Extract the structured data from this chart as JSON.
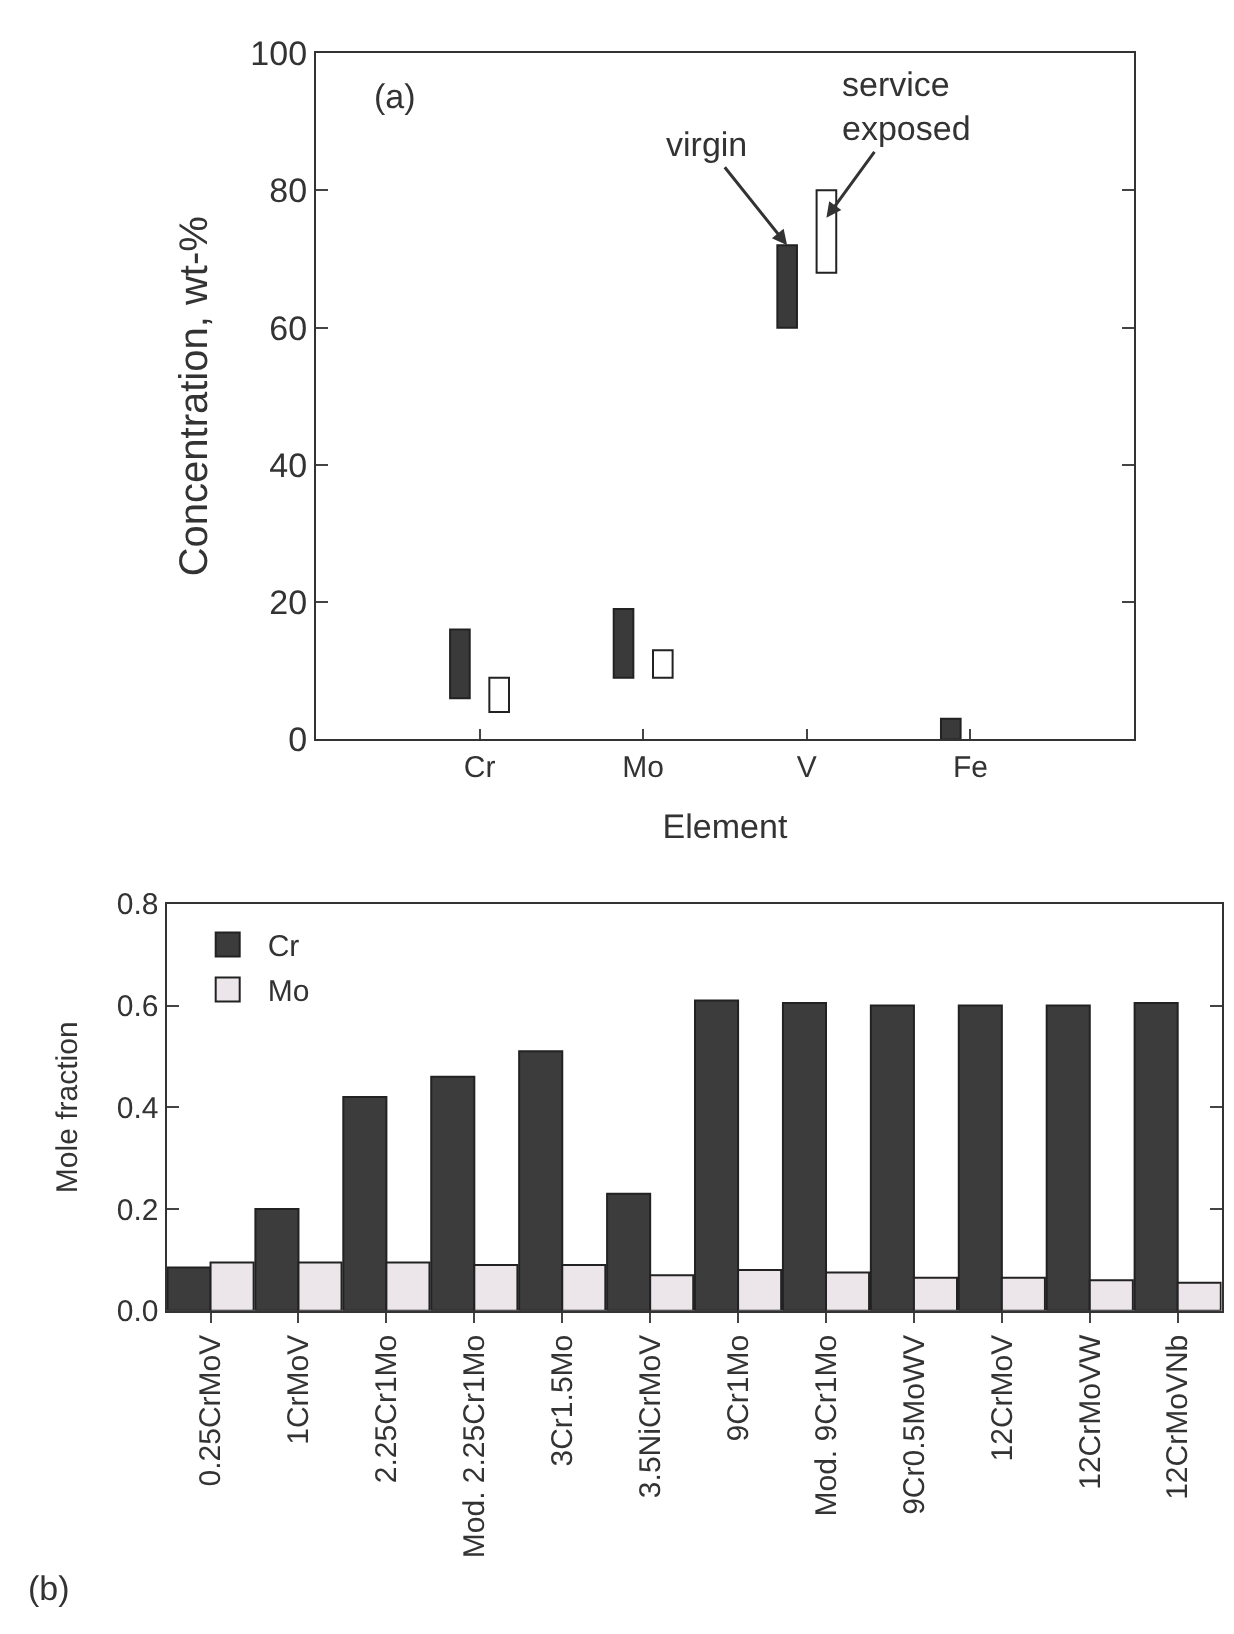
{
  "chart_data": [
    {
      "type": "bar",
      "xlabel": "Element",
      "ylabel": "Concentration, wt-%",
      "categories": [
        "Cr",
        "Mo",
        "V",
        "Fe"
      ],
      "series": [
        {
          "color": "#3a3a3a",
          "values": [
            10,
            10,
            12,
            3
          ],
          "base": [
            6,
            9,
            60,
            0
          ]
        },
        {
          "color": "#ffffff",
          "values": [
            5,
            4,
            12,
            null
          ],
          "base": [
            4,
            9,
            68,
            null
          ]
        }
      ],
      "ylim": [
        0,
        100
      ],
      "yticks": [
        0,
        20,
        40,
        60,
        80,
        100
      ],
      "grid": false,
      "legend": false,
      "annotations": [
        "(a)",
        {
          "text": "virgin",
          "x": "V",
          "y": 72
        },
        {
          "text": "service exposed",
          "x": "V",
          "y": 76
        }
      ]
    },
    {
      "type": "bar",
      "ylabel": "Mole fraction",
      "categories": [
        "0.25CrMoV",
        "1CrMoV",
        "2.25Cr1Mo",
        "Mod. 2.25Cr1Mo",
        "3Cr1.5Mo",
        "3.5NiCrMoV",
        "9Cr1Mo",
        "Mod. 9Cr1Mo",
        "9Cr0.5MoWV",
        "12CrMoV",
        "12CrMoVW",
        "12CrMoVNb"
      ],
      "series": [
        {
          "name": "Cr",
          "color": "#3c3c3c",
          "values": [
            0.085,
            0.2,
            0.42,
            0.46,
            0.51,
            0.23,
            0.61,
            0.605,
            0.6,
            0.6,
            0.6,
            0.605
          ]
        },
        {
          "name": "Mo",
          "color": "#ece6ea",
          "values": [
            0.095,
            0.095,
            0.095,
            0.09,
            0.09,
            0.07,
            0.08,
            0.075,
            0.065,
            0.065,
            0.06,
            0.055
          ]
        }
      ],
      "ylim": [
        0,
        0.8
      ],
      "yticks": [
        {
          "value": 0,
          "label": "0.0"
        },
        0.2,
        0.4,
        0.6,
        0.8
      ],
      "grid": false,
      "legend": "top left",
      "annotations": [
        "(b)"
      ]
    }
  ]
}
